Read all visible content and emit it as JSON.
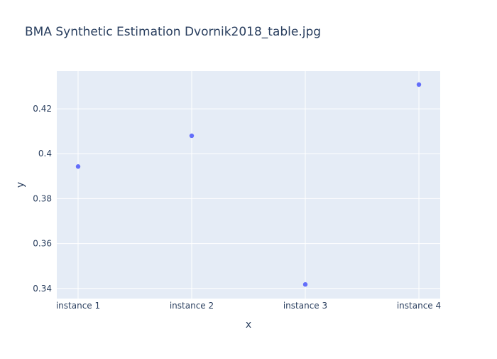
{
  "chart_data": {
    "type": "scatter",
    "title": "BMA Synthetic Estimation Dvornik2018_table.jpg",
    "xlabel": "x",
    "ylabel": "y",
    "categories": [
      "instance 1",
      "instance 2",
      "instance 3",
      "instance 4"
    ],
    "series": [
      {
        "values": [
          0.3943,
          0.408,
          0.3418,
          0.4308
        ]
      }
    ],
    "ylim": [
      0.3355,
      0.4368
    ],
    "yticks": [
      0.34,
      0.36,
      0.38,
      0.4,
      0.42
    ],
    "ytick_labels": [
      "0.34",
      "0.36",
      "0.38",
      "0.4",
      "0.42"
    ],
    "grid": true,
    "legend": "none",
    "colors": {
      "plot_background": "#e5ecf6",
      "grid": "#ffffff",
      "marker": "#636efa",
      "text": "#2a3f5f"
    }
  }
}
